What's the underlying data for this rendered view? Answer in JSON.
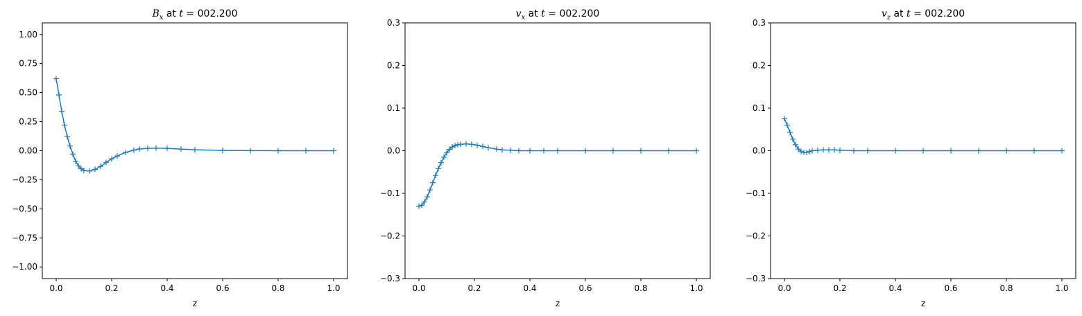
{
  "chart_data": [
    {
      "type": "line",
      "marker": "+",
      "title": {
        "symbol": "B",
        "sub": "x",
        "mid": " at ",
        "t": "t",
        "eq": " = 002.200"
      },
      "xlabel": "z",
      "ylabel": "",
      "xlim": [
        -0.05,
        1.05
      ],
      "ylim": [
        -1.1,
        1.1
      ],
      "xticks": [
        0.0,
        0.2,
        0.4,
        0.6,
        0.8,
        1.0
      ],
      "xtick_labels": [
        "0.0",
        "0.2",
        "0.4",
        "0.6",
        "0.8",
        "1.0"
      ],
      "yticks": [
        1.0,
        0.75,
        0.5,
        0.25,
        0.0,
        -0.25,
        -0.5,
        -0.75,
        -1.0
      ],
      "ytick_labels": [
        "1.00",
        "0.75",
        "0.50",
        "0.25",
        "0.00",
        "−0.25",
        "−0.50",
        "−0.75",
        "−1.00"
      ],
      "grid": false,
      "color": "#1f77b4",
      "series": [
        {
          "x": [
            0.0,
            0.01,
            0.02,
            0.03,
            0.04,
            0.05,
            0.06,
            0.07,
            0.08,
            0.09,
            0.1,
            0.12,
            0.14,
            0.16,
            0.18,
            0.2,
            0.22,
            0.25,
            0.28,
            0.3,
            0.33,
            0.36,
            0.4,
            0.45,
            0.5,
            0.6,
            0.7,
            0.8,
            0.9,
            1.0
          ],
          "y": [
            0.62,
            0.48,
            0.34,
            0.22,
            0.12,
            0.04,
            -0.03,
            -0.09,
            -0.13,
            -0.155,
            -0.17,
            -0.175,
            -0.16,
            -0.135,
            -0.1,
            -0.07,
            -0.045,
            -0.015,
            0.005,
            0.015,
            0.02,
            0.022,
            0.02,
            0.014,
            0.008,
            0.003,
            0.001,
            0.0,
            0.0,
            0.0
          ]
        }
      ]
    },
    {
      "type": "line",
      "marker": "+",
      "title": {
        "symbol": "v",
        "sub": "x",
        "mid": " at ",
        "t": "t",
        "eq": " = 002.200"
      },
      "xlabel": "z",
      "ylabel": "",
      "xlim": [
        -0.05,
        1.05
      ],
      "ylim": [
        -0.3,
        0.3
      ],
      "xticks": [
        0.0,
        0.2,
        0.4,
        0.6,
        0.8,
        1.0
      ],
      "xtick_labels": [
        "0.0",
        "0.2",
        "0.4",
        "0.6",
        "0.8",
        "1.0"
      ],
      "yticks": [
        0.3,
        0.2,
        0.1,
        0.0,
        -0.1,
        -0.2,
        -0.3
      ],
      "ytick_labels": [
        "0.3",
        "0.2",
        "0.1",
        "0.0",
        "−0.1",
        "−0.2",
        "−0.3"
      ],
      "grid": false,
      "color": "#1f77b4",
      "series": [
        {
          "x": [
            0.0,
            0.01,
            0.02,
            0.03,
            0.04,
            0.05,
            0.06,
            0.07,
            0.08,
            0.09,
            0.1,
            0.11,
            0.12,
            0.13,
            0.14,
            0.15,
            0.17,
            0.19,
            0.21,
            0.23,
            0.25,
            0.28,
            0.3,
            0.33,
            0.36,
            0.4,
            0.45,
            0.5,
            0.6,
            0.7,
            0.8,
            0.9,
            1.0
          ],
          "y": [
            -0.13,
            -0.128,
            -0.12,
            -0.108,
            -0.092,
            -0.075,
            -0.058,
            -0.042,
            -0.028,
            -0.015,
            -0.005,
            0.003,
            0.009,
            0.012,
            0.014,
            0.015,
            0.016,
            0.015,
            0.013,
            0.01,
            0.007,
            0.004,
            0.002,
            0.001,
            0.0,
            0.0,
            0.0,
            0.0,
            0.0,
            0.0,
            0.0,
            0.0,
            0.0
          ]
        }
      ]
    },
    {
      "type": "line",
      "marker": "+",
      "title": {
        "symbol": "v",
        "sub": "z",
        "mid": " at ",
        "t": "t",
        "eq": " = 002.200"
      },
      "xlabel": "z",
      "ylabel": "",
      "xlim": [
        -0.05,
        1.05
      ],
      "ylim": [
        -0.3,
        0.3
      ],
      "xticks": [
        0.0,
        0.2,
        0.4,
        0.6,
        0.8,
        1.0
      ],
      "xtick_labels": [
        "0.0",
        "0.2",
        "0.4",
        "0.6",
        "0.8",
        "1.0"
      ],
      "yticks": [
        0.3,
        0.2,
        0.1,
        0.0,
        -0.1,
        -0.2,
        -0.3
      ],
      "ytick_labels": [
        "0.3",
        "0.2",
        "0.1",
        "0.0",
        "−0.1",
        "−0.2",
        "−0.3"
      ],
      "grid": false,
      "color": "#1f77b4",
      "series": [
        {
          "x": [
            0.0,
            0.01,
            0.02,
            0.03,
            0.04,
            0.05,
            0.06,
            0.07,
            0.08,
            0.09,
            0.1,
            0.12,
            0.14,
            0.16,
            0.18,
            0.2,
            0.25,
            0.3,
            0.4,
            0.5,
            0.6,
            0.7,
            0.8,
            0.9,
            1.0
          ],
          "y": [
            0.075,
            0.06,
            0.043,
            0.027,
            0.014,
            0.004,
            -0.002,
            -0.004,
            -0.004,
            -0.002,
            0.0,
            0.001,
            0.002,
            0.002,
            0.002,
            0.001,
            0.0,
            0.0,
            0.0,
            0.0,
            0.0,
            0.0,
            0.0,
            0.0,
            0.0
          ]
        }
      ]
    }
  ]
}
